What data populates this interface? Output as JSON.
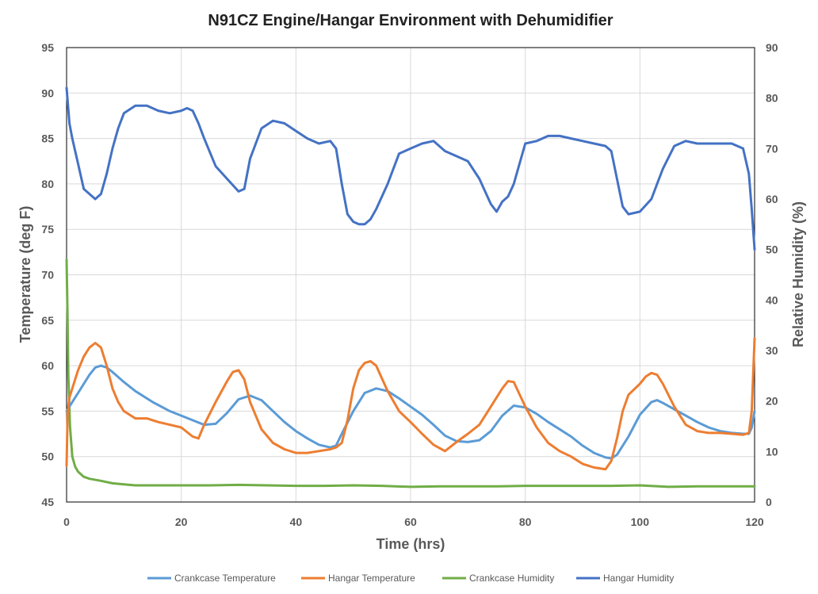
{
  "chart_data": {
    "type": "line",
    "title": "N91CZ Engine/Hangar Environment with Dehumidifier",
    "xlabel": "Time (hrs)",
    "ylabel": "Temperature (deg F)",
    "y2label": "Relative Humidity (%)",
    "xlim": [
      0,
      120
    ],
    "ylim": [
      45,
      95
    ],
    "y2lim": [
      0,
      90
    ],
    "xticks": [
      "0",
      "20",
      "40",
      "60",
      "80",
      "100",
      "120"
    ],
    "yticks": [
      "45",
      "50",
      "55",
      "60",
      "65",
      "70",
      "75",
      "80",
      "85",
      "90",
      "95"
    ],
    "y2ticks": [
      "0",
      "10",
      "20",
      "30",
      "40",
      "50",
      "60",
      "70",
      "80",
      "90"
    ],
    "grid": true,
    "legend_position": "bottom",
    "series": [
      {
        "name": "Crankcase Temperature",
        "axis": "left",
        "color": "#5b9bd5",
        "x": [
          0,
          1,
          2,
          3,
          4,
          5,
          6,
          7,
          8,
          10,
          12,
          15,
          18,
          20,
          22,
          24,
          26,
          28,
          30,
          32,
          34,
          36,
          38,
          40,
          42,
          44,
          46,
          47,
          48,
          50,
          52,
          54,
          56,
          58,
          60,
          62,
          64,
          66,
          68,
          70,
          72,
          74,
          76,
          78,
          80,
          82,
          84,
          86,
          88,
          90,
          92,
          94,
          95,
          96,
          98,
          100,
          102,
          103,
          104,
          106,
          108,
          110,
          112,
          114,
          116,
          118,
          119,
          119.5,
          120
        ],
        "y": [
          55,
          56,
          57,
          58,
          59,
          59.8,
          60,
          59.8,
          59.3,
          58.2,
          57.2,
          56,
          55,
          54.5,
          54,
          53.5,
          53.6,
          54.8,
          56.3,
          56.7,
          56.2,
          55,
          53.8,
          52.8,
          52,
          51.3,
          51,
          51.2,
          52.5,
          55,
          57,
          57.5,
          57.2,
          56.4,
          55.5,
          54.6,
          53.5,
          52.3,
          51.7,
          51.6,
          51.8,
          52.8,
          54.5,
          55.6,
          55.4,
          54.7,
          53.8,
          53,
          52.2,
          51.2,
          50.4,
          49.9,
          49.8,
          50.2,
          52.2,
          54.6,
          56,
          56.2,
          55.9,
          55.2,
          54.5,
          53.8,
          53.2,
          52.8,
          52.6,
          52.5,
          52.5,
          53.2,
          55
        ]
      },
      {
        "name": "Hangar Temperature",
        "axis": "left",
        "color": "#ed7d31",
        "x": [
          0,
          0.2,
          0.5,
          1,
          2,
          3,
          4,
          5,
          6,
          7,
          8,
          9,
          10,
          12,
          14,
          16,
          18,
          20,
          22,
          23,
          24,
          26,
          28,
          29,
          30,
          31,
          32,
          34,
          36,
          38,
          40,
          42,
          44,
          46,
          47,
          48,
          49,
          50,
          51,
          52,
          53,
          54,
          56,
          58,
          60,
          62,
          64,
          66,
          68,
          70,
          72,
          74,
          76,
          77,
          78,
          80,
          82,
          84,
          86,
          88,
          90,
          92,
          94,
          95,
          96,
          97,
          98,
          100,
          101,
          102,
          103,
          104,
          106,
          108,
          110,
          112,
          114,
          116,
          118,
          119,
          119.5,
          120
        ],
        "y": [
          49,
          55,
          56.5,
          57.5,
          59.5,
          61,
          62,
          62.5,
          62,
          60,
          57.5,
          56,
          55,
          54.2,
          54.2,
          53.8,
          53.5,
          53.2,
          52.2,
          52,
          53.5,
          56,
          58.3,
          59.3,
          59.5,
          58.5,
          56,
          53,
          51.5,
          50.8,
          50.4,
          50.4,
          50.6,
          50.8,
          51,
          51.5,
          54,
          57.5,
          59.5,
          60.3,
          60.5,
          60,
          57.2,
          55,
          53.8,
          52.5,
          51.3,
          50.6,
          51.6,
          52.5,
          53.5,
          55.5,
          57.5,
          58.3,
          58.2,
          55.5,
          53.2,
          51.5,
          50.6,
          50,
          49.2,
          48.8,
          48.6,
          49.5,
          52,
          55,
          56.8,
          58,
          58.8,
          59.2,
          59,
          58,
          55.5,
          53.5,
          52.8,
          52.6,
          52.6,
          52.5,
          52.4,
          52.6,
          55,
          63
        ]
      },
      {
        "name": "Crankcase Humidity",
        "axis": "right",
        "color": "#70ad47",
        "x": [
          0,
          0.15,
          0.3,
          0.6,
          1,
          1.5,
          2,
          3,
          4,
          6,
          8,
          10,
          12,
          15,
          20,
          25,
          30,
          35,
          40,
          45,
          50,
          55,
          60,
          65,
          70,
          75,
          80,
          85,
          90,
          95,
          100,
          105,
          110,
          115,
          120
        ],
        "y": [
          48,
          38,
          25,
          15,
          9,
          7,
          6,
          5,
          4.6,
          4.2,
          3.7,
          3.5,
          3.3,
          3.3,
          3.3,
          3.3,
          3.4,
          3.3,
          3.2,
          3.2,
          3.3,
          3.2,
          3.0,
          3.1,
          3.1,
          3.1,
          3.2,
          3.2,
          3.2,
          3.2,
          3.3,
          3.0,
          3.1,
          3.1,
          3.1
        ]
      },
      {
        "name": "Hangar Humidity",
        "axis": "right",
        "color": "#4472c4",
        "x": [
          0,
          0.5,
          1,
          2,
          3,
          4,
          5,
          5.5,
          6,
          7,
          8,
          9,
          10,
          12,
          14,
          16,
          18,
          20,
          21,
          22,
          23,
          24,
          26,
          28,
          30,
          31,
          32,
          34,
          36,
          38,
          40,
          42,
          44,
          46,
          47,
          48,
          49,
          50,
          51,
          52,
          53,
          54,
          56,
          58,
          60,
          62,
          64,
          66,
          68,
          70,
          72,
          74,
          75,
          76,
          77,
          78,
          80,
          82,
          84,
          86,
          88,
          90,
          92,
          94,
          95,
          96,
          97,
          98,
          100,
          102,
          103,
          104,
          106,
          108,
          110,
          112,
          114,
          116,
          118,
          119,
          119.5,
          120
        ],
        "y": [
          82,
          75,
          72,
          67,
          62,
          61,
          60,
          60.5,
          61,
          65,
          70,
          74,
          77,
          78.5,
          78.5,
          77.5,
          77,
          77.5,
          78,
          77.5,
          75,
          72,
          66.5,
          64,
          61.5,
          62,
          68,
          74,
          75.5,
          75,
          73.5,
          72,
          71,
          71.5,
          70,
          63,
          57,
          55.5,
          55,
          55,
          56,
          58,
          63,
          69,
          70,
          71,
          71.5,
          69.5,
          68.5,
          67.5,
          64,
          59,
          57.5,
          59.5,
          60.5,
          63,
          71,
          71.5,
          72.5,
          72.5,
          72,
          71.5,
          71,
          70.5,
          69.5,
          64,
          58.5,
          57,
          57.5,
          60,
          63,
          66,
          70.5,
          71.5,
          71,
          71,
          71,
          71,
          70,
          65,
          58,
          50
        ]
      }
    ]
  }
}
